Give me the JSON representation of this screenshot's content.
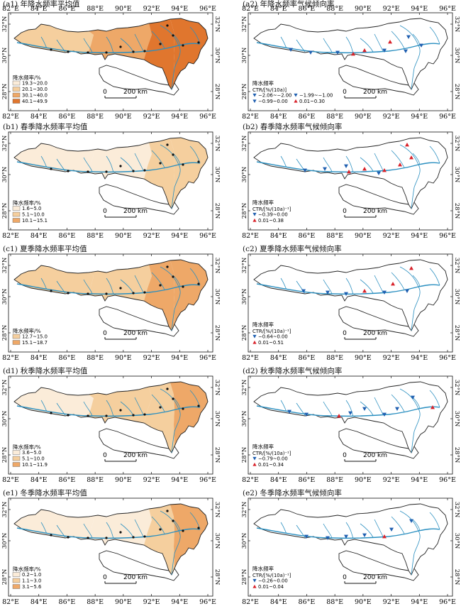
{
  "axis": {
    "lon_labels": [
      "82°E",
      "84°E",
      "86°E",
      "88°E",
      "90°E",
      "92°E",
      "94°E",
      "96°E"
    ],
    "lat_labels": [
      "32°N",
      "30°N",
      "28°N"
    ],
    "scale_zero": "0",
    "scale_label": "200 km"
  },
  "colors": {
    "river": "#2a8fc0",
    "outline": "#222222",
    "fill_levels": [
      "#fbecd9",
      "#f5cf9e",
      "#eea868",
      "#e0762e"
    ],
    "trend_pos": "#d8222a",
    "trend_neg": "#1f5fb0"
  },
  "panels": [
    {
      "id": "a1",
      "title": "(a1) 年降水频率平均值",
      "kind": "mean",
      "legend_title": "降水频率/%",
      "classes": [
        {
          "label": "19.3~20.0",
          "level": 0
        },
        {
          "label": "20.1~30.0",
          "level": 1
        },
        {
          "label": "30.1~40.0",
          "level": 2
        },
        {
          "label": "40.1~49.9",
          "level": 3
        }
      ]
    },
    {
      "id": "a2",
      "title": "(a2) 年降水频率气候倾向率",
      "kind": "trend",
      "legend_title": "降水频率",
      "legend_unit": "CTR/[%/(10a)]",
      "classes": [
        {
          "label": "−2.06~−2.00",
          "symbol": "tri-down",
          "color_key": "trend_neg"
        },
        {
          "label": "−0.99~0.00",
          "symbol": "tri-down",
          "color_key": "trend_neg"
        },
        {
          "label": "−1.99~−1.00",
          "symbol": "tri-down",
          "color_key": "trend_neg"
        },
        {
          "label": "0.01~0.30",
          "symbol": "tri-up",
          "color_key": "trend_pos"
        }
      ]
    },
    {
      "id": "b1",
      "title": "(b1) 春季降水频率平均值",
      "kind": "mean",
      "legend_title": "降水频率/%",
      "classes": [
        {
          "label": "1.6~5.0",
          "level": 0
        },
        {
          "label": "5.1~10.0",
          "level": 1
        },
        {
          "label": "10.1~15.1",
          "level": 2
        }
      ]
    },
    {
      "id": "b2",
      "title": "(b2) 春季降水频率气候倾向率",
      "kind": "trend",
      "legend_title": "降水频率",
      "legend_unit": "CTR/[%/(10a)⁻¹]",
      "classes": [
        {
          "label": "−0.39~0.00",
          "symbol": "tri-down",
          "color_key": "trend_neg"
        },
        {
          "label": "0.01~0.38",
          "symbol": "tri-up",
          "color_key": "trend_pos"
        }
      ]
    },
    {
      "id": "c1",
      "title": "(c1) 夏季降水频率平均值",
      "kind": "mean",
      "legend_title": "降水频率/%",
      "classes": [
        {
          "label": "12.7~15.0",
          "level": 1
        },
        {
          "label": "15.1~18.7",
          "level": 2
        }
      ]
    },
    {
      "id": "c2",
      "title": "(c2) 夏季降水频率气候倾向率",
      "kind": "trend",
      "legend_title": "降水频率",
      "legend_unit": "CTR/[%/(10a)⁻¹]",
      "classes": [
        {
          "label": "−0.64~0.00",
          "symbol": "tri-down",
          "color_key": "trend_neg"
        },
        {
          "label": "0.01~0.51",
          "symbol": "tri-up",
          "color_key": "trend_pos"
        }
      ]
    },
    {
      "id": "d1",
      "title": "(d1) 秋季降水频率平均值",
      "kind": "mean",
      "legend_title": "降水频率/%",
      "classes": [
        {
          "label": "3.6~5.0",
          "level": 0
        },
        {
          "label": "5.1~10.0",
          "level": 1
        },
        {
          "label": "10.1~11.9",
          "level": 2
        }
      ]
    },
    {
      "id": "d2",
      "title": "(d2) 秋季降水频率气候倾向率",
      "kind": "trend",
      "legend_title": "降水频率",
      "legend_unit": "CTR/[%/(10a)⁻¹]",
      "classes": [
        {
          "label": "−0.79~0.00",
          "symbol": "tri-down",
          "color_key": "trend_neg"
        },
        {
          "label": "0.01~0.34",
          "symbol": "tri-up",
          "color_key": "trend_pos"
        }
      ]
    },
    {
      "id": "e1",
      "title": "(e1) 冬季降水频率平均值",
      "kind": "mean",
      "legend_title": "降水频率/%",
      "classes": [
        {
          "label": "0.2~1.0",
          "level": 0
        },
        {
          "label": "1.1~3.0",
          "level": 1
        },
        {
          "label": "3.1~5.6",
          "level": 2
        }
      ]
    },
    {
      "id": "e2",
      "title": "(e2) 冬季降水频率气候倾向率",
      "kind": "trend",
      "legend_title": "降水频率",
      "legend_unit": "CTR/[%/(10a)⁻¹]",
      "classes": [
        {
          "label": "−0.26~0.00",
          "symbol": "tri-down",
          "color_key": "trend_neg"
        },
        {
          "label": "0.01~0.04",
          "symbol": "tri-up",
          "color_key": "trend_pos"
        }
      ]
    }
  ]
}
